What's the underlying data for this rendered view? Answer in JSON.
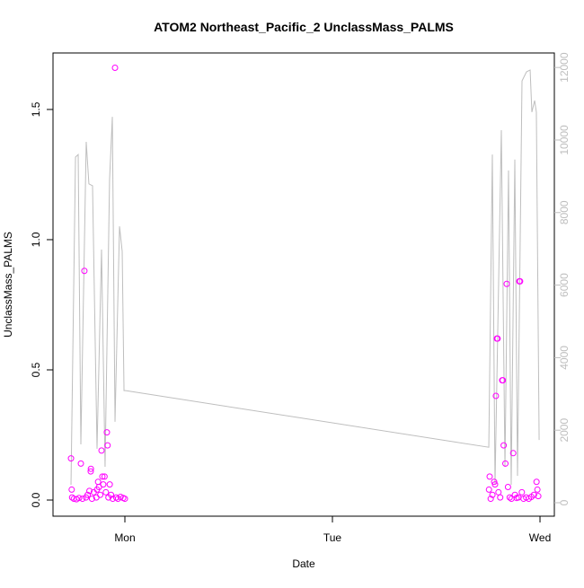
{
  "chart_data": {
    "type": "scatter",
    "title": "ATOM2 Northeast_Pacific_2 UnclassMass_PALMS",
    "xlabel": "Date",
    "ylabel": "UnclassMass_PALMS",
    "xlim": [
      -8.31,
      49.66
    ],
    "xticks": [
      {
        "value": 0,
        "label": "Mon"
      },
      {
        "value": 24,
        "label": "Tue"
      },
      {
        "value": 48,
        "label": "Wed"
      }
    ],
    "ylim": [
      -0.062,
      1.717
    ],
    "yticks": [
      {
        "value": 0,
        "label": "0.0"
      },
      0.5,
      {
        "value": 1,
        "label": "1.0"
      },
      1.5
    ],
    "y2lim": [
      -371,
      12400
    ],
    "y2ticks": [
      0,
      2000,
      4000,
      6000,
      8000,
      10000,
      12000
    ],
    "points": {
      "color": "#ff00ff",
      "x": [
        -6.23,
        -6.15,
        -6.1,
        -5.9,
        -5.6,
        -5.3,
        -5.09,
        -4.9,
        -4.68,
        -4.5,
        -4.3,
        -4.1,
        -3.95,
        -3.93,
        -3.8,
        -3.6,
        -3.3,
        -3.22,
        -3.1,
        -3.0,
        -2.85,
        -2.7,
        -2.6,
        -2.5,
        -2.35,
        -2.2,
        -2.08,
        -2.0,
        -1.9,
        -1.75,
        -1.6,
        -1.4,
        -1.14,
        -1.0,
        -0.8,
        -0.5,
        -0.2,
        0.0,
        42.1,
        42.18,
        42.3,
        42.5,
        42.7,
        42.8,
        42.9,
        43.01,
        43.1,
        43.2,
        43.4,
        43.63,
        43.7,
        43.8,
        44.0,
        44.15,
        44.3,
        44.5,
        44.7,
        44.9,
        45.1,
        45.3,
        45.5,
        45.61,
        45.7,
        45.9,
        46.1,
        46.4,
        46.7,
        47.0,
        47.3,
        47.6,
        47.7,
        47.8
      ],
      "y": [
        0.16,
        0.04,
        0.01,
        0.005,
        0.003,
        0.008,
        0.14,
        0.005,
        0.88,
        0.01,
        0.02,
        0.035,
        0.11,
        0.12,
        0.005,
        0.03,
        0.01,
        0.04,
        0.07,
        0.05,
        0.02,
        0.19,
        0.09,
        0.06,
        0.09,
        0.03,
        0.26,
        0.21,
        0.01,
        0.06,
        0.02,
        0.005,
        1.66,
        0.01,
        0.005,
        0.012,
        0.008,
        0.005,
        0.04,
        0.09,
        0.005,
        0.02,
        0.07,
        0.06,
        0.4,
        0.62,
        0.62,
        0.03,
        0.01,
        0.46,
        0.46,
        0.21,
        0.14,
        0.83,
        0.05,
        0.01,
        0.005,
        0.18,
        0.02,
        0.008,
        0.01,
        0.84,
        0.84,
        0.03,
        0.005,
        0.01,
        0.005,
        0.012,
        0.02,
        0.07,
        0.04,
        0.015
      ]
    },
    "line": {
      "color": "#bebebe",
      "axis": "y2",
      "x": [
        -6.23,
        -5.71,
        -5.4,
        -5.09,
        -4.47,
        -4.16,
        -3.74,
        -3.22,
        -2.7,
        -2.29,
        -1.77,
        -1.45,
        -1.14,
        -0.62,
        -0.31,
        -0.1,
        0.1,
        42.08,
        42.49,
        42.8,
        43.53,
        43.95,
        44.36,
        44.67,
        45.09,
        45.4,
        45.92,
        46.44,
        46.86,
        47.06,
        47.38,
        47.58,
        47.9
      ],
      "y": [
        495,
        9530,
        9600,
        1610,
        9950,
        8790,
        8740,
        1490,
        6980,
        990,
        8910,
        10640,
        2230,
        7620,
        6930,
        3090,
        3090,
        1530,
        9600,
        495,
        10270,
        990,
        9160,
        495,
        9460,
        740,
        11630,
        11880,
        11930,
        10770,
        11090,
        10770,
        1730
      ]
    }
  }
}
